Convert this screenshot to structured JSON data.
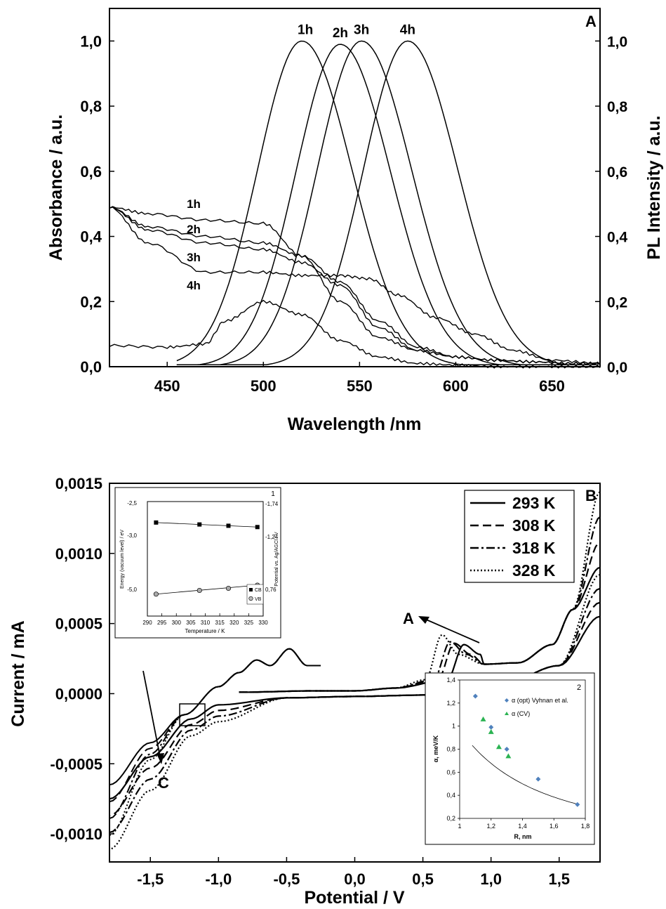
{
  "figure": {
    "chart_data": [
      {
        "type": "line",
        "panel_label": "A",
        "xlabel": "Wavelength /nm",
        "ylabel": "Absorbance / a.u.",
        "ylabel_right": "PL Intensity / a.u.",
        "xlim": [
          420,
          675
        ],
        "ylim": [
          0,
          1.1
        ],
        "ylim_right": [
          0,
          1.1
        ],
        "x_ticks": [
          "450",
          "500",
          "550",
          "600",
          "650"
        ],
        "y_ticks": [
          "0,0",
          "0,2",
          "0,4",
          "0,6",
          "0,8",
          "1,0"
        ],
        "y_ticks_right": [
          "0,0",
          "0,2",
          "0,4",
          "0,6",
          "0,8",
          "1,0"
        ],
        "grid": false,
        "pl_series": [
          {
            "name": "1h",
            "peak_x": 520,
            "peak_y": 1.0
          },
          {
            "name": "2h",
            "peak_x": 540,
            "peak_y": 0.99
          },
          {
            "name": "3h",
            "peak_x": 551,
            "peak_y": 1.0
          },
          {
            "name": "4h",
            "peak_x": 575,
            "peak_y": 1.0
          }
        ],
        "absorbance_series": [
          {
            "name": "1h",
            "x": [
              420,
              440,
              470,
              500,
              520,
              540,
              560,
              580,
              600,
              620,
              640,
              660,
              675
            ],
            "y": [
              0.49,
              0.47,
              0.45,
              0.44,
              0.34,
              0.2,
              0.09,
              0.05,
              0.03,
              0.02,
              0.015,
              0.01,
              0.01
            ]
          },
          {
            "name": "2h",
            "x": [
              420,
              440,
              470,
              500,
              520,
              540,
              560,
              580,
              600,
              620,
              640,
              660,
              675
            ],
            "y": [
              0.49,
              0.43,
              0.4,
              0.38,
              0.34,
              0.26,
              0.14,
              0.06,
              0.03,
              0.02,
              0.015,
              0.01,
              0.01
            ]
          },
          {
            "name": "3h",
            "x": [
              420,
              440,
              470,
              500,
              520,
              540,
              560,
              580,
              600,
              620,
              640,
              660,
              675
            ],
            "y": [
              0.49,
              0.42,
              0.38,
              0.36,
              0.32,
              0.25,
              0.12,
              0.05,
              0.03,
              0.02,
              0.015,
              0.01,
              0.01
            ]
          },
          {
            "name": "4h",
            "x": [
              420,
              440,
              470,
              500,
              520,
              540,
              555,
              570,
              590,
              610,
              630,
              650,
              675
            ],
            "y": [
              0.49,
              0.38,
              0.29,
              0.29,
              0.28,
              0.28,
              0.27,
              0.22,
              0.15,
              0.1,
              0.05,
              0.02,
              0.01
            ]
          }
        ],
        "extra_absorbance": {
          "x": [
            420,
            450,
            470,
            480,
            500,
            520,
            540,
            560,
            580,
            600,
            620,
            640,
            660,
            675
          ],
          "y": [
            0.065,
            0.06,
            0.07,
            0.14,
            0.2,
            0.16,
            0.08,
            0.03,
            0.01,
            0.005,
            0.0,
            0.0,
            0.0,
            0.0
          ]
        }
      },
      {
        "type": "line",
        "panel_label": "B",
        "xlabel": "Potential / V",
        "ylabel": "Current / mA",
        "xlim": [
          -1.8,
          1.8
        ],
        "ylim": [
          -0.0012,
          0.0015
        ],
        "x_ticks": [
          "-1,5",
          "-1,0",
          "-0,5",
          "0,0",
          "0,5",
          "1,0",
          "1,5"
        ],
        "y_ticks": [
          "-0,0010",
          "-0,0005",
          "0,0000",
          "0,0005",
          "0,0010",
          "0,0015"
        ],
        "legend_position": "top-right",
        "series": [
          {
            "name": "293 K",
            "style": "solid",
            "forward_peak_x": 0.8,
            "forward_peak_y": 0.00035
          },
          {
            "name": "308 K",
            "style": "dashed",
            "forward_peak_x": 0.73,
            "forward_peak_y": 0.00036
          },
          {
            "name": "318 K",
            "style": "dash-dot",
            "forward_peak_x": 0.7,
            "forward_peak_y": 0.00037
          },
          {
            "name": "328 K",
            "style": "dotted",
            "forward_peak_x": 0.64,
            "forward_peak_y": 0.00042
          }
        ],
        "annotations": [
          {
            "text": "A",
            "x": 0.4,
            "y": 0.00044
          },
          {
            "text": "C",
            "x": -1.48,
            "y": -0.00072
          }
        ]
      },
      {
        "type": "scatter",
        "panel_label": "1",
        "xlabel": "Temperature / K",
        "ylabel": "Energy (vacuum level) / eV",
        "ylabel_right": "Potential vs. Ag/AGCl / V",
        "x_ticks": [
          "290",
          "295",
          "300",
          "305",
          "310",
          "315",
          "320",
          "325",
          "330"
        ],
        "y_ticks": [
          "-2,5",
          "-3,0",
          "-5,0"
        ],
        "y_ticks_right": [
          "-1,74",
          "-1,24",
          "0,76"
        ],
        "series": [
          {
            "name": "CB",
            "x": [
              293,
              308,
              318,
              328
            ],
            "y": [
              -2.77,
              -2.8,
              -2.82,
              -2.84
            ]
          },
          {
            "name": "VB",
            "x": [
              293,
              308,
              318,
              328
            ],
            "y": [
              -5.05,
              -4.98,
              -4.94,
              -4.88
            ]
          }
        ]
      },
      {
        "type": "scatter",
        "panel_label": "2",
        "xlabel": "R, nm",
        "ylabel": "α, meV/K",
        "xlim": [
          1.0,
          1.8
        ],
        "ylim": [
          0.2,
          1.4
        ],
        "x_ticks": [
          "1",
          "1,2",
          "1,4",
          "1,6",
          "1,8"
        ],
        "y_ticks": [
          "0,2",
          "0,4",
          "0,6",
          "0,8",
          "1",
          "1,2",
          "1,4"
        ],
        "series": [
          {
            "name": "α (opt) Vyhnan et al.",
            "x": [
              1.1,
              1.2,
              1.3,
              1.5,
              1.75
            ],
            "y": [
              1.26,
              0.99,
              0.8,
              0.54,
              0.32
            ]
          },
          {
            "name": "α (CV)",
            "x": [
              1.15,
              1.2,
              1.25,
              1.31
            ],
            "y": [
              1.06,
              0.95,
              0.82,
              0.74
            ]
          }
        ]
      }
    ]
  }
}
